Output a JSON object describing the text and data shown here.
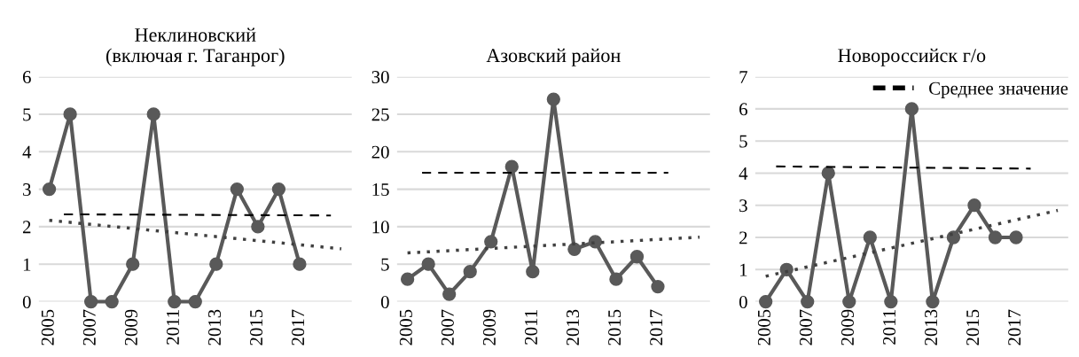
{
  "chart_data": [
    {
      "type": "line",
      "title": "Неклиновский\n(включая г. Таганрог)",
      "x": [
        2005,
        2006,
        2007,
        2008,
        2009,
        2010,
        2011,
        2012,
        2013,
        2014,
        2015,
        2016,
        2017
      ],
      "xlim": [
        2004.5,
        2019.5
      ],
      "xticks": [
        2005,
        2007,
        2009,
        2011,
        2013,
        2015,
        2017
      ],
      "ylim": [
        0,
        6
      ],
      "yticks": [
        0,
        1,
        2,
        3,
        4,
        5,
        6
      ],
      "grid": "y",
      "legend": false,
      "series": [
        {
          "color": "#595959",
          "marker": "circle",
          "line_style": "solid",
          "values": [
            3,
            5,
            0,
            0,
            1,
            5,
            0,
            0,
            1,
            3,
            2,
            3,
            1
          ]
        },
        {
          "color": "#000000",
          "marker": "none",
          "line_style": "dashed",
          "x": [
            2005.7,
            2018.5
          ],
          "values": [
            2.33,
            2.3
          ]
        },
        {
          "color": "#404040",
          "marker": "none",
          "line_style": "dotted",
          "x": [
            2005,
            2019
          ],
          "values": [
            2.17,
            1.41
          ]
        }
      ]
    },
    {
      "type": "line",
      "title": "Азовский район",
      "x": [
        2005,
        2006,
        2007,
        2008,
        2009,
        2010,
        2011,
        2012,
        2013,
        2014,
        2015,
        2016,
        2017
      ],
      "xlim": [
        2004.5,
        2019.5
      ],
      "xticks": [
        2005,
        2007,
        2009,
        2011,
        2013,
        2015,
        2017
      ],
      "ylim": [
        0,
        30
      ],
      "yticks": [
        0,
        5,
        10,
        15,
        20,
        25,
        30
      ],
      "grid": "y",
      "legend": false,
      "series": [
        {
          "color": "#595959",
          "marker": "circle",
          "line_style": "solid",
          "values": [
            3,
            5,
            1,
            4,
            8,
            18,
            4,
            27,
            7,
            8,
            3,
            6,
            2
          ]
        },
        {
          "color": "#000000",
          "marker": "none",
          "line_style": "dashed",
          "x": [
            2005.7,
            2017.5
          ],
          "values": [
            17.2,
            17.2
          ]
        },
        {
          "color": "#404040",
          "marker": "none",
          "line_style": "dotted",
          "x": [
            2005,
            2019
          ],
          "values": [
            6.5,
            8.6
          ]
        }
      ]
    },
    {
      "type": "line",
      "title": "Новороссийск г/о",
      "x": [
        2005,
        2006,
        2007,
        2008,
        2009,
        2010,
        2011,
        2012,
        2013,
        2014,
        2015,
        2016,
        2017
      ],
      "xlim": [
        2004.5,
        2019.5
      ],
      "xticks": [
        2005,
        2007,
        2009,
        2011,
        2013,
        2015,
        2017
      ],
      "ylim": [
        0,
        7
      ],
      "yticks": [
        0,
        1,
        2,
        3,
        4,
        5,
        6,
        7
      ],
      "grid": "y",
      "legend": "top right",
      "series": [
        {
          "color": "#595959",
          "marker": "circle",
          "line_style": "solid",
          "values": [
            0,
            1,
            0,
            4,
            0,
            2,
            0,
            6,
            0,
            2,
            3,
            2,
            2
          ]
        },
        {
          "name": "Среднее значение",
          "color": "#000000",
          "marker": "none",
          "line_style": "dashed",
          "x": [
            2005.5,
            2017.7
          ],
          "values": [
            4.21,
            4.14
          ]
        },
        {
          "color": "#404040",
          "marker": "none",
          "line_style": "dotted",
          "x": [
            2005,
            2019
          ],
          "values": [
            0.79,
            2.84
          ]
        }
      ]
    }
  ]
}
